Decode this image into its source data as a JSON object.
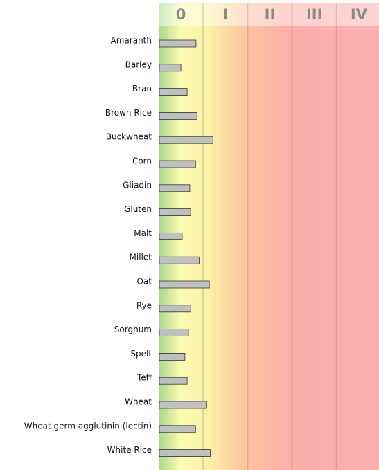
{
  "chart_data": {
    "type": "bar",
    "orientation": "horizontal",
    "categories": [
      "Amaranth",
      "Barley",
      "Bran",
      "Brown Rice",
      "Buckwheat",
      "Corn",
      "Gliadin",
      "Gluten",
      "Malt",
      "Millet",
      "Oat",
      "Rye",
      "Sorghum",
      "Spelt",
      "Teff",
      "Wheat",
      "Wheat germ agglutinin (lectin)",
      "White Rice"
    ],
    "values": [
      0.84,
      0.5,
      0.64,
      0.86,
      1.22,
      0.83,
      0.7,
      0.72,
      0.53,
      0.91,
      1.14,
      0.72,
      0.67,
      0.59,
      0.64,
      1.08,
      0.83,
      1.16
    ],
    "color": "#c0c0c0",
    "xlim": [
      0,
      5
    ],
    "xticks": [
      {
        "value": 0.5,
        "label": "0"
      },
      {
        "value": 1.5,
        "label": "I"
      },
      {
        "value": 2.5,
        "label": "II"
      },
      {
        "value": 3.5,
        "label": "III"
      },
      {
        "value": 4.5,
        "label": "IV"
      }
    ]
  }
}
